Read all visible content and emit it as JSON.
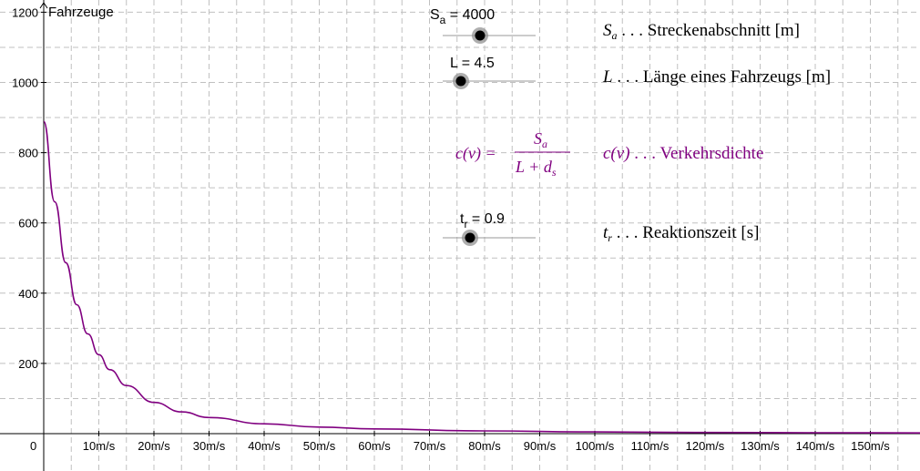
{
  "chart_data": {
    "type": "line",
    "ylabel": "Fahrzeuge",
    "xlabel": "",
    "origin_label": "0",
    "x_unit": "m/s",
    "xlim": [
      0,
      160
    ],
    "ylim": [
      0,
      1200
    ],
    "x_ticks": [
      10,
      20,
      30,
      40,
      50,
      60,
      70,
      80,
      90,
      100,
      110,
      120,
      130,
      140,
      150
    ],
    "x_tick_labels": [
      "10m/s",
      "20m/s",
      "30m/s",
      "40m/s",
      "50m/s",
      "60m/s",
      "70m/s",
      "80m/s",
      "90m/s",
      "100m/s",
      "110m/s",
      "120m/s",
      "130m/s",
      "140m/s",
      "150m/s"
    ],
    "y_ticks": [
      200,
      400,
      600,
      800,
      1000,
      1200
    ],
    "y_tick_labels": [
      "200",
      "400",
      "600",
      "800",
      "1000",
      "1200"
    ],
    "grid": true,
    "series": [
      {
        "formula": "c(v) = S_a / (L + d_s)",
        "color": "#800080",
        "x": [
          0,
          2,
          4,
          6,
          8,
          10,
          12,
          15,
          20,
          25,
          30,
          40,
          50,
          60,
          80,
          100,
          120,
          140,
          160
        ],
        "y": [
          889,
          660,
          487,
          367,
          284,
          225,
          182,
          137,
          89,
          62,
          46,
          28,
          18.8,
          13.4,
          7.7,
          5.0,
          3.5,
          2.6,
          2.0
        ]
      }
    ]
  },
  "sliders": {
    "sa": {
      "name": "S",
      "sub": "a",
      "value_text": " = 4000",
      "value": 4000
    },
    "l": {
      "label": "L = 4.5",
      "value": 4.5
    },
    "tr": {
      "name": "t",
      "sub": "r",
      "value_text": " = 0.9",
      "value": 0.9
    }
  },
  "legend": {
    "sa": {
      "symbol": "S",
      "sub": "a",
      "text": " . . .  Streckenabschnitt [m]"
    },
    "l": {
      "symbol": "L",
      "text": " . . .  Länge eines Fahrzeugs [m]"
    },
    "c": {
      "symbol": "c(v)",
      "text": " . . .  Verkehrsdichte"
    },
    "tr": {
      "symbol": "t",
      "sub": "r",
      "text": " . . .  Reaktionszeit [s]"
    }
  },
  "formula": {
    "lhs": "c(v) =",
    "num": "S",
    "num_sub": "a",
    "den": "L + d",
    "den_sub": "s"
  },
  "colors": {
    "curve": "#800080",
    "grid": "#c0c0c0",
    "text": "#000000"
  }
}
